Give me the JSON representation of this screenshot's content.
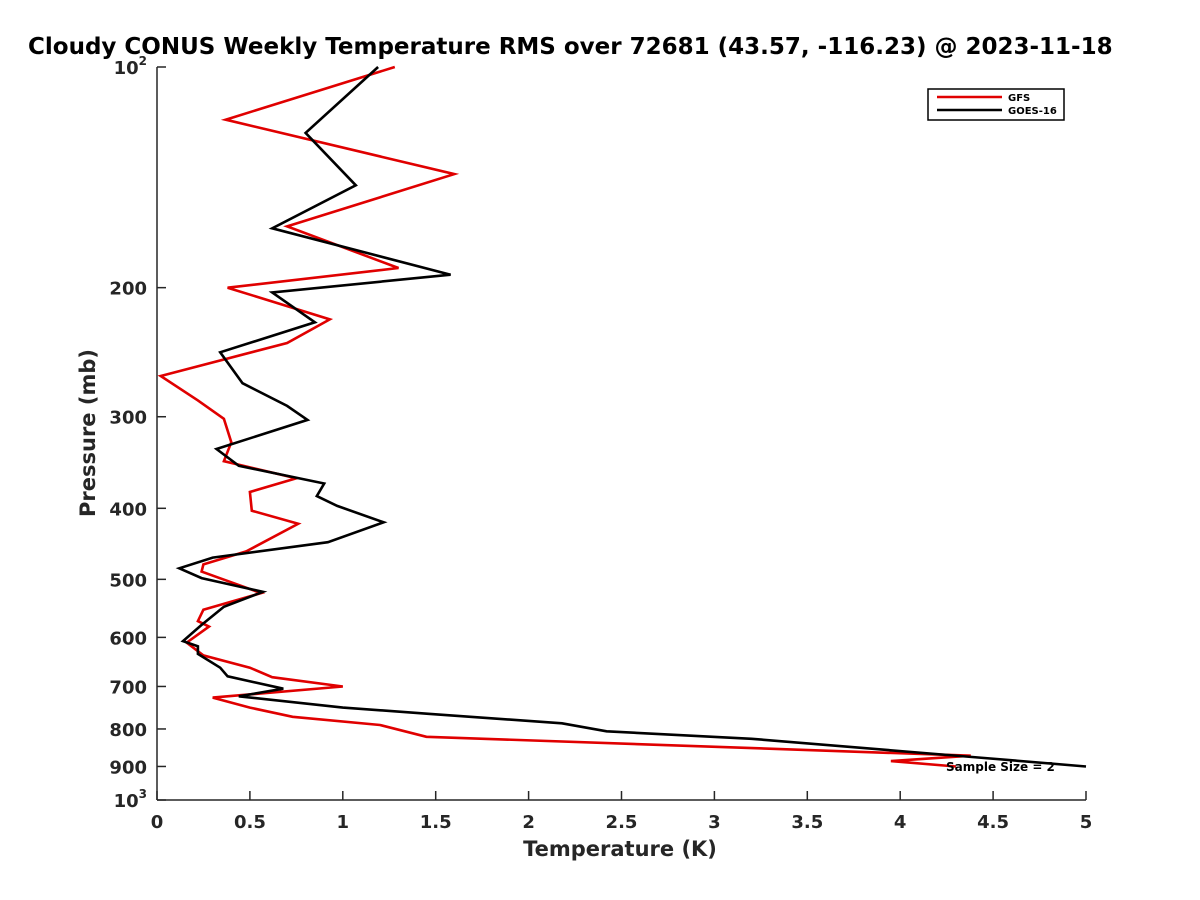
{
  "chart_data": {
    "type": "line",
    "title": "Cloudy CONUS Weekly Temperature RMS over 72681 (43.57, -116.23) @ 2023-11-18",
    "xlabel": "Temperature (K)",
    "ylabel": "Pressure (mb)",
    "xlim": [
      0,
      5
    ],
    "ylim": [
      100,
      1000
    ],
    "y_scale": "log",
    "y_reversed": true,
    "grid": false,
    "legend_position": "top-right",
    "x_ticks": [
      "0",
      "0.5",
      "1",
      "1.5",
      "2",
      "2.5",
      "3",
      "3.5",
      "4",
      "4.5",
      "5"
    ],
    "y_ticks": [
      {
        "value": 100,
        "base": "10",
        "exp": "2"
      },
      {
        "value": 200,
        "base": "200",
        "exp": ""
      },
      {
        "value": 300,
        "base": "300",
        "exp": ""
      },
      {
        "value": 400,
        "base": "400",
        "exp": ""
      },
      {
        "value": 500,
        "base": "500",
        "exp": ""
      },
      {
        "value": 600,
        "base": "600",
        "exp": ""
      },
      {
        "value": 700,
        "base": "700",
        "exp": ""
      },
      {
        "value": 800,
        "base": "800",
        "exp": ""
      },
      {
        "value": 900,
        "base": "900",
        "exp": ""
      },
      {
        "value": 1000,
        "base": "10",
        "exp": "3"
      }
    ],
    "series": [
      {
        "name": "GFS",
        "color": "#e00000",
        "points": [
          [
            1.28,
            100
          ],
          [
            0.37,
            118
          ],
          [
            1.6,
            140
          ],
          [
            0.7,
            165
          ],
          [
            1.3,
            188
          ],
          [
            0.38,
            200
          ],
          [
            0.93,
            221
          ],
          [
            0.7,
            238
          ],
          [
            0.02,
            264
          ],
          [
            0.22,
            285
          ],
          [
            0.36,
            302
          ],
          [
            0.4,
            325
          ],
          [
            0.36,
            345
          ],
          [
            0.75,
            364
          ],
          [
            0.5,
            380
          ],
          [
            0.51,
            403
          ],
          [
            0.76,
            420
          ],
          [
            0.48,
            458
          ],
          [
            0.25,
            477
          ],
          [
            0.24,
            488
          ],
          [
            0.56,
            522
          ],
          [
            0.25,
            550
          ],
          [
            0.22,
            570
          ],
          [
            0.28,
            580
          ],
          [
            0.16,
            610
          ],
          [
            0.25,
            635
          ],
          [
            0.5,
            660
          ],
          [
            0.62,
            680
          ],
          [
            1.0,
            700
          ],
          [
            0.3,
            725
          ],
          [
            0.5,
            748
          ],
          [
            0.73,
            770
          ],
          [
            1.2,
            790
          ],
          [
            1.45,
            820
          ],
          [
            4.38,
            870
          ],
          [
            3.95,
            885
          ],
          [
            4.3,
            900
          ]
        ]
      },
      {
        "name": "GOES-16",
        "color": "#000000",
        "points": [
          [
            1.19,
            100
          ],
          [
            0.8,
            123
          ],
          [
            1.07,
            145
          ],
          [
            0.62,
            166
          ],
          [
            1.58,
            192
          ],
          [
            0.62,
            203
          ],
          [
            0.85,
            223
          ],
          [
            0.34,
            245
          ],
          [
            0.46,
            270
          ],
          [
            0.7,
            290
          ],
          [
            0.81,
            303
          ],
          [
            0.32,
            332
          ],
          [
            0.44,
            350
          ],
          [
            0.9,
            370
          ],
          [
            0.86,
            385
          ],
          [
            0.97,
            397
          ],
          [
            1.22,
            418
          ],
          [
            0.92,
            445
          ],
          [
            0.3,
            467
          ],
          [
            0.12,
            483
          ],
          [
            0.24,
            498
          ],
          [
            0.57,
            520
          ],
          [
            0.36,
            545
          ],
          [
            0.24,
            577
          ],
          [
            0.14,
            607
          ],
          [
            0.22,
            617
          ],
          [
            0.22,
            632
          ],
          [
            0.34,
            660
          ],
          [
            0.38,
            678
          ],
          [
            0.68,
            705
          ],
          [
            0.44,
            722
          ],
          [
            1.0,
            748
          ],
          [
            1.47,
            763
          ],
          [
            2.18,
            786
          ],
          [
            2.42,
            806
          ],
          [
            3.2,
            825
          ],
          [
            4.42,
            875
          ],
          [
            5.0,
            900
          ]
        ]
      }
    ],
    "annotation": "Sample Size = 2"
  }
}
